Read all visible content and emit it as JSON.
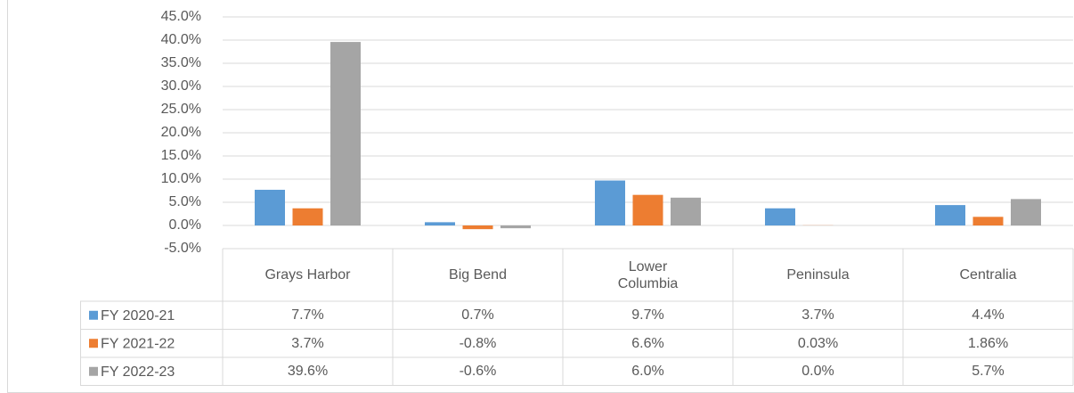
{
  "chart_data": {
    "type": "bar",
    "categories": [
      "Grays Harbor",
      "Big Bend",
      "Lower Columbia",
      "Peninsula",
      "Centralia"
    ],
    "series": [
      {
        "name": "FY 2020-21",
        "color": "#5b9bd5",
        "values": [
          7.7,
          0.7,
          9.7,
          3.7,
          4.4
        ],
        "value_labels": [
          "7.7%",
          "0.7%",
          "9.7%",
          "3.7%",
          "4.4%"
        ]
      },
      {
        "name": "FY 2021-22",
        "color": "#ed7d31",
        "values": [
          3.7,
          -0.8,
          6.6,
          0.03,
          1.86
        ],
        "value_labels": [
          "3.7%",
          "-0.8%",
          "6.6%",
          "0.03%",
          "1.86%"
        ]
      },
      {
        "name": "FY 2022-23",
        "color": "#a5a5a5",
        "values": [
          39.6,
          -0.6,
          6.0,
          0.0,
          5.7
        ],
        "value_labels": [
          "39.6%",
          "-0.6%",
          "6.0%",
          "0.0%",
          "5.7%"
        ]
      }
    ],
    "ylim": [
      -5,
      45
    ],
    "yticks": [
      {
        "value": -5,
        "label": "-5.0%"
      },
      {
        "value": 0,
        "label": "0.0%"
      },
      {
        "value": 5,
        "label": "5.0%"
      },
      {
        "value": 10,
        "label": "10.0%"
      },
      {
        "value": 15,
        "label": "15.0%"
      },
      {
        "value": 20,
        "label": "20.0%"
      },
      {
        "value": 25,
        "label": "25.0%"
      },
      {
        "value": 30,
        "label": "30.0%"
      },
      {
        "value": 35,
        "label": "35.0%"
      },
      {
        "value": 40,
        "label": "40.0%"
      },
      {
        "value": 45,
        "label": "45.0%"
      }
    ],
    "grid": true
  }
}
